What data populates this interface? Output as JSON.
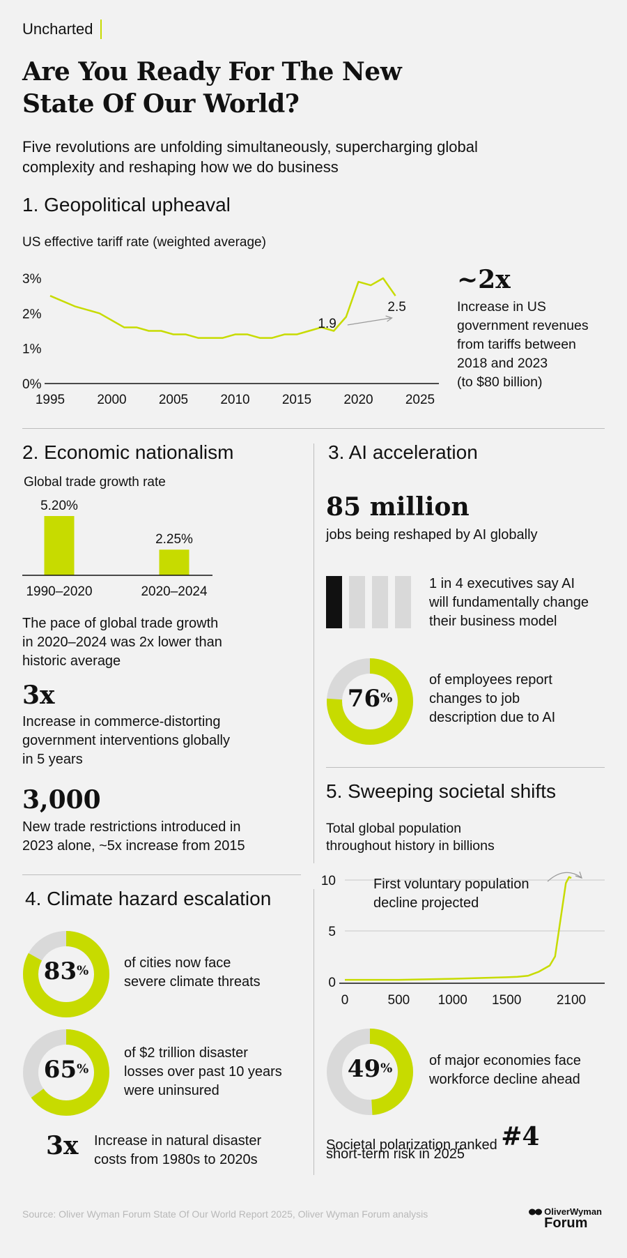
{
  "brand": "Uncharted",
  "title_line1": "Are You Ready For The New",
  "title_line2": "State Of Our World?",
  "intro_line1": "Five revolutions are unfolding simultaneously, supercharging global",
  "intro_line2": "complexity and reshaping how we do business",
  "s1": {
    "heading": "1. Geopolitical upheaval",
    "chart_title": "US effective tariff rate (weighted average)",
    "stat": "~2x",
    "stat_lines": [
      "Increase in US",
      "government revenues",
      "from tariffs between",
      "2018 and 2023",
      "(to $80 billion)"
    ]
  },
  "s2": {
    "heading": "2. Economic nationalism",
    "chart_title": "Global trade growth rate",
    "note_lines": [
      "The pace of global trade growth",
      "in 2020–2024 was 2x lower than",
      "historic average"
    ],
    "stat1": "3x",
    "stat1_lines": [
      "Increase in commerce-distorting",
      "government interventions globally",
      "in 5 years"
    ],
    "stat2": "3,000",
    "stat2_lines": [
      "New trade restrictions introduced in",
      "2023 alone, ~5x increase from 2015"
    ]
  },
  "s3": {
    "heading": "3. AI acceleration",
    "stat": "85 million",
    "stat_desc": "jobs being reshaped by AI globally",
    "exec_lines": [
      "1 in 4 executives say AI",
      "will fundamentally change",
      "their business model"
    ],
    "exec_ratio": {
      "filled": 1,
      "total": 4
    },
    "donut": {
      "value": 76,
      "sign": "%"
    },
    "donut_lines": [
      "of employees report",
      "changes to job",
      "description due to AI"
    ]
  },
  "s4": {
    "heading": "4. Climate hazard escalation",
    "donut1": {
      "value": 83,
      "sign": "%"
    },
    "donut1_lines": [
      "of cities now face",
      "severe climate threats"
    ],
    "donut2": {
      "value": 65,
      "sign": "%"
    },
    "donut2_lines": [
      "of $2 trillion disaster",
      "losses over past 10 years",
      "were uninsured"
    ],
    "stat": "3x",
    "stat_lines": [
      "Increase in natural disaster",
      "costs from 1980s to 2020s"
    ]
  },
  "s5": {
    "heading": "5. Sweeping societal shifts",
    "chart_title_lines": [
      "Total global population",
      "throughout history in billions"
    ],
    "annotation_lines": [
      "First voluntary population",
      "decline projected"
    ],
    "donut": {
      "value": 49,
      "sign": "%"
    },
    "donut_lines": [
      "of major economies face",
      "workforce decline ahead"
    ],
    "rank_text1": "Societal polarization ranked",
    "rank": "#4",
    "rank_text2": "short-term risk in 2025"
  },
  "source": "Source: Oliver Wyman Forum State Of Our World Report 2025, Oliver Wyman Forum analysis",
  "logo": {
    "line1": "OliverWyman",
    "line2": "Forum"
  },
  "colors": {
    "accent": "#c7db00",
    "track": "#d9d9d9",
    "dark": "#111111",
    "rule": "#bdbdbd"
  },
  "chart_data": [
    {
      "type": "line",
      "title": "US effective tariff rate (weighted average)",
      "x": [
        1995,
        1997,
        1999,
        2001,
        2002,
        2003,
        2004,
        2005,
        2006,
        2007,
        2008,
        2009,
        2010,
        2011,
        2012,
        2013,
        2014,
        2015,
        2016,
        2017,
        2018,
        2019,
        2020,
        2021,
        2022,
        2023
      ],
      "y": [
        2.5,
        2.2,
        2.0,
        1.6,
        1.6,
        1.5,
        1.5,
        1.4,
        1.4,
        1.3,
        1.3,
        1.3,
        1.4,
        1.4,
        1.3,
        1.3,
        1.4,
        1.4,
        1.5,
        1.6,
        1.5,
        1.9,
        2.9,
        2.8,
        3.0,
        2.5
      ],
      "xticks": [
        1995,
        2000,
        2005,
        2010,
        2015,
        2020,
        2025
      ],
      "yticks": [
        "0%",
        "1%",
        "2%",
        "3%"
      ],
      "ylim": [
        0,
        3
      ],
      "annotations": [
        {
          "text": "1.9",
          "x": 2019
        },
        {
          "text": "2.5",
          "x": 2023
        }
      ]
    },
    {
      "type": "bar",
      "title": "Global trade growth rate",
      "categories": [
        "1990–2020",
        "2020–2024"
      ],
      "values": [
        5.2,
        2.25
      ],
      "labels": [
        "5.20%",
        "2.25%"
      ]
    },
    {
      "type": "line",
      "title": "Total global population throughout history in billions",
      "x": [
        0,
        500,
        1000,
        1500,
        1600,
        1700,
        1800,
        1850,
        1900,
        1950,
        2000,
        2050,
        2080,
        2100
      ],
      "y": [
        0.2,
        0.2,
        0.3,
        0.45,
        0.5,
        0.6,
        1.0,
        1.3,
        1.6,
        2.5,
        6.1,
        9.7,
        10.3,
        10.2
      ],
      "xticks": [
        0,
        500,
        1000,
        1500,
        2100
      ],
      "yticks": [
        0,
        5,
        10
      ],
      "ylim": [
        0,
        10
      ]
    }
  ]
}
